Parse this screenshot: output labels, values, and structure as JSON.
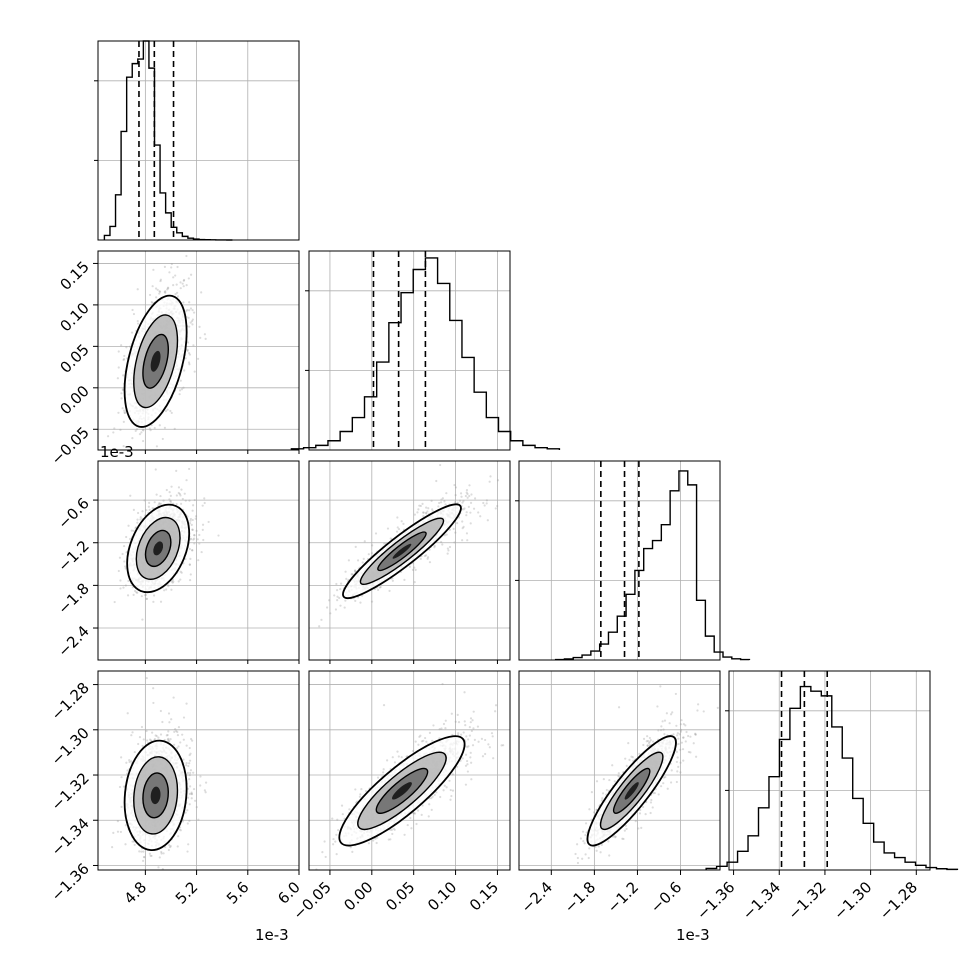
{
  "chart_data": {
    "type": "scatter",
    "kind": "corner-plot",
    "grid": true,
    "parameters": [
      {
        "ticks": [
          "4.8",
          "5.2",
          "5.6",
          "6.0"
        ],
        "tick_values": [
          4.8,
          5.2,
          5.6,
          6.0
        ],
        "range": [
          4.43,
          6.0
        ],
        "offset_label": "1e-3",
        "quantiles": [
          4.75,
          4.87,
          5.02
        ],
        "peak": 4.88,
        "spread": 0.1
      },
      {
        "ticks": [
          "−0.05",
          "0.00",
          "0.05",
          "0.10",
          "0.15"
        ],
        "tick_values": [
          -0.05,
          0.0,
          0.05,
          0.1,
          0.15
        ],
        "range": [
          -0.075,
          0.165
        ],
        "offset_label": "",
        "quantiles": [
          0.002,
          0.032,
          0.064
        ],
        "peak": 0.032,
        "spread": 0.032
      },
      {
        "ticks": [
          "−2.4",
          "−1.8",
          "−1.2",
          "−0.6"
        ],
        "tick_values": [
          -2.4,
          -1.8,
          -1.2,
          -0.6
        ],
        "range": [
          -2.85,
          -0.05
        ],
        "offset_label": "1e-3",
        "quantiles": [
          -1.71,
          -1.38,
          -1.18
        ],
        "peak": -1.26,
        "spread": 0.27
      },
      {
        "ticks": [
          "−1.36",
          "−1.34",
          "−1.32",
          "−1.30",
          "−1.28"
        ],
        "tick_values": [
          -1.36,
          -1.34,
          -1.32,
          -1.3,
          -1.28
        ],
        "range": [
          -1.362,
          -1.274
        ],
        "offset_label": "",
        "quantiles": [
          -1.339,
          -1.329,
          -1.319
        ],
        "peak": -1.328,
        "spread": 0.011
      }
    ],
    "histograms": [
      {
        "param": 0,
        "ylim": [
          0,
          2200
        ],
        "counts": [
          50,
          150,
          500,
          1200,
          1800,
          1950,
          2000,
          2200,
          1900,
          1050,
          520,
          300,
          140,
          80,
          40,
          20,
          10,
          5,
          3,
          2,
          1,
          1,
          0
        ]
      },
      {
        "param": 1,
        "ylim": [
          0,
          860
        ],
        "counts": [
          5,
          10,
          20,
          40,
          80,
          140,
          230,
          380,
          550,
          680,
          780,
          830,
          720,
          560,
          400,
          250,
          140,
          80,
          40,
          20,
          10,
          5
        ]
      },
      {
        "param": 2,
        "ylim": [
          0,
          1000
        ],
        "counts": [
          2,
          5,
          12,
          25,
          45,
          80,
          140,
          220,
          330,
          450,
          560,
          600,
          680,
          850,
          950,
          880,
          300,
          120,
          40,
          15,
          6,
          2
        ]
      },
      {
        "param": 3,
        "ylim": [
          0,
          640
        ],
        "counts": [
          5,
          12,
          25,
          60,
          110,
          200,
          300,
          420,
          520,
          590,
          575,
          560,
          460,
          360,
          230,
          150,
          90,
          55,
          40,
          25,
          15,
          8,
          4,
          2
        ]
      }
    ],
    "pairs": [
      {
        "x_param": 0,
        "y_param": 1,
        "center": [
          4.88,
          0.032
        ],
        "sd": [
          0.11,
          0.036
        ],
        "corr": 0.45
      },
      {
        "x_param": 0,
        "y_param": 2,
        "center": [
          4.9,
          -1.28
        ],
        "sd": [
          0.11,
          0.28
        ],
        "corr": 0.35
      },
      {
        "x_param": 1,
        "y_param": 2,
        "center": [
          0.036,
          -1.32
        ],
        "sd": [
          0.032,
          0.3
        ],
        "corr": 0.92
      },
      {
        "x_param": 0,
        "y_param": 3,
        "center": [
          4.88,
          -1.329
        ],
        "sd": [
          0.11,
          0.011
        ],
        "corr": 0.12
      },
      {
        "x_param": 1,
        "y_param": 3,
        "center": [
          0.036,
          -1.327
        ],
        "sd": [
          0.034,
          0.011
        ],
        "corr": 0.85
      },
      {
        "x_param": 2,
        "y_param": 3,
        "center": [
          -1.28,
          -1.327
        ],
        "sd": [
          0.28,
          0.011
        ],
        "corr": 0.88
      }
    ]
  }
}
